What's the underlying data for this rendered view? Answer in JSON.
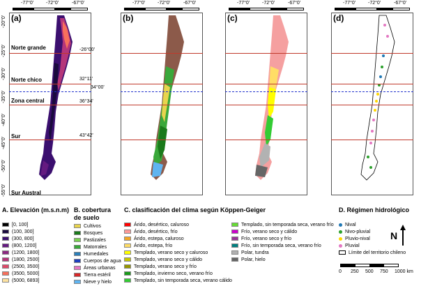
{
  "panels": [
    {
      "label": "(a)",
      "lons": [
        "-77°0'",
        "-72°0'",
        "-67°0'"
      ]
    },
    {
      "label": "(b)",
      "lons": [
        "-77°0'",
        "-72°0'",
        "-67°0'"
      ]
    },
    {
      "label": "(c)",
      "lons": [
        "-77°0'",
        "-72°0'",
        "-67°0'"
      ]
    },
    {
      "label": "(d)",
      "lons": [
        "-77°0'",
        "-72°0'",
        "-67°0'"
      ]
    }
  ],
  "lat_labels": [
    "-20°0'",
    "-25°0'",
    "-30°0'",
    "-35°0'",
    "-40°0'",
    "-45°0'",
    "-50°0'",
    "-55°0'"
  ],
  "zones": [
    "Norte grande",
    "Norte chico",
    "Zona central",
    "Sur",
    "Sur Austral"
  ],
  "coords": [
    "-26°00'",
    "32°11'",
    "34°00'",
    "36°34'",
    "43°42'"
  ],
  "legend_a": {
    "title": "A. Elevación (m.s.n.m)",
    "items": [
      {
        "label": "[0, 100]",
        "color": "#000000"
      },
      {
        "label": "(100, 300]",
        "color": "#1a0a3d"
      },
      {
        "label": "(300, 800]",
        "color": "#3b0f6f"
      },
      {
        "label": "(800, 1200]",
        "color": "#641a80"
      },
      {
        "label": "(1200, 1800]",
        "color": "#8c2981"
      },
      {
        "label": "(1800, 2500]",
        "color": "#b5367a"
      },
      {
        "label": "(2500, 3500]",
        "color": "#de4968"
      },
      {
        "label": "(3500, 5000]",
        "color": "#f7705c"
      },
      {
        "label": "(5000, 6893]",
        "color": "#fde2a0"
      }
    ]
  },
  "legend_b": {
    "title1": "B. cobertura",
    "title2": "de suelo",
    "items": [
      {
        "label": "Cultivos",
        "color": "#e8d44d"
      },
      {
        "label": "Bosques",
        "color": "#1b7a1b"
      },
      {
        "label": "Pastizales",
        "color": "#7ad151"
      },
      {
        "label": "Matorrales",
        "color": "#3aa83a"
      },
      {
        "label": "Humedales",
        "color": "#2c7fb8"
      },
      {
        "label": "Cuerpos de agua",
        "color": "#1f3fbf"
      },
      {
        "label": "Áreas urbanas",
        "color": "#e377c2"
      },
      {
        "label": "Tierra estéril",
        "color": "#d62728"
      },
      {
        "label": "Nieve y hielo",
        "color": "#5fb4f0"
      }
    ]
  },
  "legend_c": {
    "title": "C. clasificación del clima según Köppen-Geiger",
    "col1": [
      {
        "label": "Árido, desértico, caluroso",
        "color": "#ff0000"
      },
      {
        "label": "Árido, desértico, frío",
        "color": "#ff9999"
      },
      {
        "label": "Árido, estepa, caluroso",
        "color": "#f5a623"
      },
      {
        "label": "Árido, estepa, frío",
        "color": "#ffdd66"
      },
      {
        "label": "Templado, verano seco y caluroso",
        "color": "#ffff00"
      },
      {
        "label": "Templado, verano seco y cálido",
        "color": "#c8c800"
      },
      {
        "label": "Templado, verano seco y frío",
        "color": "#969600"
      },
      {
        "label": "Templado, invierno seco, verano frío",
        "color": "#1a9a1a"
      },
      {
        "label": "Templado, sin temporada seca, verano cálido",
        "color": "#33cc33"
      }
    ],
    "col2": [
      {
        "label": "Templado, sin temporada seca, verano frío",
        "color": "#66dd33"
      },
      {
        "label": "Frío, verano seco y cálido",
        "color": "#cc00cc"
      },
      {
        "label": "Frío, verano seco y frío",
        "color": "#993399"
      },
      {
        "label": "Frío, sin temporada seca, verano frío",
        "color": "#008080"
      },
      {
        "label": "Polar, tundra",
        "color": "#b2b2b2"
      },
      {
        "label": "Polar, hielo",
        "color": "#666666"
      }
    ]
  },
  "legend_d": {
    "title": "D. Régimen hidrológico",
    "items": [
      {
        "label": "Nival",
        "color": "#1f77b4"
      },
      {
        "label": "Nivo-pluvial",
        "color": "#2ca02c"
      },
      {
        "label": "Pluvio-nival",
        "color": "#ffd700"
      },
      {
        "label": "Pluvial",
        "color": "#e377c2"
      }
    ],
    "territory": "Límite del territorio chileno",
    "north": "N",
    "scale_ticks": [
      "0",
      "250",
      "500",
      "750",
      "1000 km"
    ]
  },
  "colors": {
    "zone_line": "#c0392b",
    "dashed_line": "#2233cc",
    "panel_b_base": "#8c5a4a",
    "panel_c_base": "#f5a0a0"
  }
}
